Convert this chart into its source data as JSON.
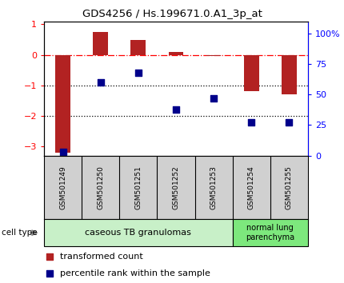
{
  "title": "GDS4256 / Hs.199671.0.A1_3p_at",
  "samples": [
    "GSM501249",
    "GSM501250",
    "GSM501251",
    "GSM501252",
    "GSM501253",
    "GSM501254",
    "GSM501255"
  ],
  "red_values": [
    -3.2,
    0.75,
    0.48,
    0.1,
    -0.05,
    -1.2,
    -1.3
  ],
  "blue_values": [
    3,
    60,
    68,
    38,
    47,
    27,
    27
  ],
  "ylim_left": [
    -3.3,
    1.1
  ],
  "ylim_right": [
    0,
    110
  ],
  "group1_label": "caseous TB granulomas",
  "group2_label": "normal lung\nparenchyma",
  "group1_color": "#c8f0c8",
  "group2_color": "#7de87d",
  "xtick_bg": "#d0d0d0",
  "bar_color": "#b22222",
  "dot_color": "#00008b",
  "left_tick_values": [
    1,
    0,
    -1,
    -2,
    -3
  ],
  "right_tick_values": [
    100,
    75,
    50,
    25,
    0
  ],
  "right_tick_labels": [
    "100%",
    "75",
    "50",
    "25",
    "0"
  ],
  "hline_y": [
    0,
    -1,
    -2
  ],
  "hline_styles": [
    "dashdot",
    "dotted",
    "dotted"
  ],
  "hline_colors": [
    "red",
    "black",
    "black"
  ]
}
